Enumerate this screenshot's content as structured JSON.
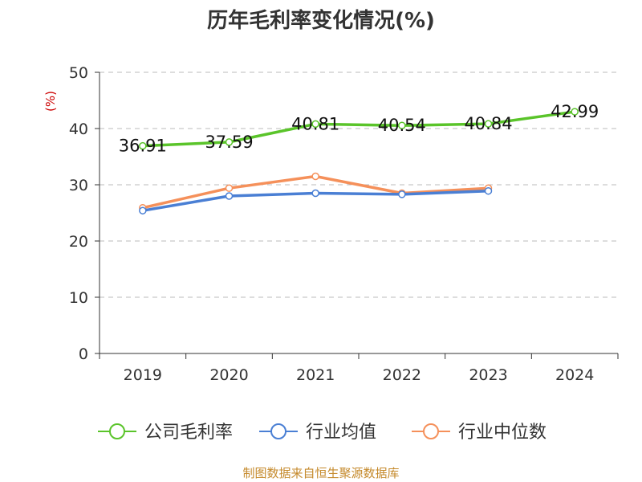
{
  "chart_data": {
    "type": "line",
    "title": "历年毛利率变化情况(%)",
    "ylabel": "(%)",
    "xlabel": "",
    "categories": [
      "2019",
      "2020",
      "2021",
      "2022",
      "2023",
      "2024"
    ],
    "ylim": [
      0,
      50
    ],
    "yticks": [
      "0",
      "10",
      "20",
      "30",
      "40",
      "50"
    ],
    "grid": true,
    "legend_position": "bottom",
    "series": [
      {
        "name": "公司毛利率",
        "color": "#5ac42a",
        "values": [
          36.91,
          37.59,
          40.81,
          40.54,
          40.84,
          42.99
        ],
        "labels": [
          "36.91",
          "37.59",
          "40.81",
          "40.54",
          "40.84",
          "42.99"
        ]
      },
      {
        "name": "行业均值",
        "color": "#4a7fd4",
        "values": [
          25.4,
          28.0,
          28.5,
          28.3,
          28.9,
          null
        ]
      },
      {
        "name": "行业中位数",
        "color": "#f5905a",
        "values": [
          25.9,
          29.4,
          31.5,
          28.5,
          29.4,
          null
        ]
      }
    ]
  },
  "footer": "制图数据来自恒生聚源数据库"
}
